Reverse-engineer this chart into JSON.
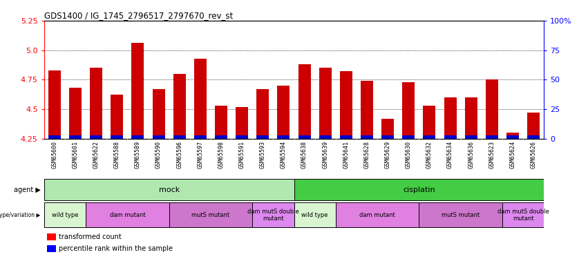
{
  "title": "GDS1400 / IG_1745_2796517_2797670_rev_st",
  "samples": [
    "GSM65600",
    "GSM65601",
    "GSM65622",
    "GSM65588",
    "GSM65589",
    "GSM65590",
    "GSM65596",
    "GSM65597",
    "GSM65598",
    "GSM65591",
    "GSM65593",
    "GSM65594",
    "GSM65638",
    "GSM65639",
    "GSM65641",
    "GSM65628",
    "GSM65629",
    "GSM65630",
    "GSM65632",
    "GSM65634",
    "GSM65636",
    "GSM65623",
    "GSM65624",
    "GSM65626"
  ],
  "red_values": [
    4.83,
    4.68,
    4.85,
    4.62,
    5.06,
    4.67,
    4.8,
    4.93,
    4.53,
    4.52,
    4.67,
    4.7,
    4.88,
    4.85,
    4.82,
    4.74,
    4.42,
    4.73,
    4.53,
    4.6,
    4.6,
    4.75,
    4.3,
    4.47
  ],
  "ymin": 4.25,
  "ymax": 5.25,
  "yticks": [
    4.25,
    4.5,
    4.75,
    5.0,
    5.25
  ],
  "right_ytick_labels": [
    "0",
    "25",
    "50",
    "75",
    "100%"
  ],
  "right_ytick_vals": [
    0,
    25,
    50,
    75,
    100
  ],
  "bar_width": 0.6,
  "red_color": "#cc0000",
  "blue_color": "#0000cc",
  "mock_color": "#b0e8b0",
  "cisplatin_color": "#44cc44",
  "wt_color": "#d8f5d0",
  "dam_color": "#e080e0",
  "muts_color": "#cc77cc",
  "double_color": "#dd88ee",
  "xtick_bg": "#d0d0d0",
  "genotype_defs": [
    {
      "label": "wild type",
      "start": 0,
      "end": 1,
      "color": "#d8f5d0"
    },
    {
      "label": "dam mutant",
      "start": 2,
      "end": 5,
      "color": "#e080e0"
    },
    {
      "label": "mutS mutant",
      "start": 6,
      "end": 9,
      "color": "#cc77cc"
    },
    {
      "label": "dam mutS double\nmutant",
      "start": 10,
      "end": 11,
      "color": "#dd88ee"
    },
    {
      "label": "wild type",
      "start": 12,
      "end": 13,
      "color": "#d8f5d0"
    },
    {
      "label": "dam mutant",
      "start": 14,
      "end": 17,
      "color": "#e080e0"
    },
    {
      "label": "mutS mutant",
      "start": 18,
      "end": 21,
      "color": "#cc77cc"
    },
    {
      "label": "dam mutS double\nmutant",
      "start": 22,
      "end": 23,
      "color": "#dd88ee"
    }
  ]
}
